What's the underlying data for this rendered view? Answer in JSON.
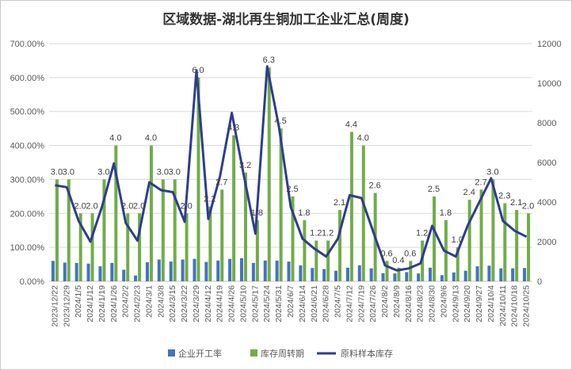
{
  "chart_data": {
    "type": "bar",
    "title": "区域数据-湖北再生铜加工企业汇总(周度)",
    "xlabel": "",
    "ylabel": "",
    "ylim": [
      0,
      7
    ],
    "y2lim": [
      0,
      12000
    ],
    "yticks": [
      "0.00%",
      "100.00%",
      "200.00%",
      "300.00%",
      "400.00%",
      "500.00%",
      "600.00%",
      "700.00%"
    ],
    "y2ticks": [
      "0",
      "2000",
      "4000",
      "6000",
      "8000",
      "10000",
      "12000"
    ],
    "legend_position": "bottom",
    "grid": true,
    "categories": [
      "2023/12/22",
      "2023/12/29",
      "2024/1/5",
      "2024/1/12",
      "2024/1/19",
      "2024/1/26",
      "2024/2/2",
      "2024/2/23",
      "2024/3/1",
      "2024/3/8",
      "2024/3/15",
      "2024/3/22",
      "2024/3/29",
      "2024/4/12",
      "2024/4/19",
      "2024/4/26",
      "2024/5/10",
      "2024/5/17",
      "2024/5/24",
      "2024/5/31",
      "2024/6/7",
      "2024/6/14",
      "2024/6/21",
      "2024/6/28",
      "2024/7/5",
      "2024/7/12",
      "2024/7/19",
      "2024/7/26",
      "2024/8/2",
      "2024/8/9",
      "2024/8/16",
      "2024/8/23",
      "2024/8/30",
      "2024/9/6",
      "2024/9/13",
      "2024/9/20",
      "2024/9/27",
      "2024/10/4",
      "2024/10/11",
      "2024/10/18",
      "2024/10/25"
    ],
    "series": [
      {
        "name": "企业开工率",
        "type": "bar",
        "axis": "left",
        "color": "#4472C4",
        "values": [
          0.6,
          0.55,
          0.54,
          0.52,
          0.44,
          0.54,
          0.34,
          0.17,
          0.56,
          0.64,
          0.58,
          0.64,
          0.66,
          0.57,
          0.61,
          0.66,
          0.68,
          0.54,
          0.61,
          0.61,
          0.58,
          0.47,
          0.39,
          0.36,
          0.31,
          0.4,
          0.47,
          0.38,
          0.24,
          0.23,
          0.27,
          0.23,
          0.4,
          0.18,
          0.26,
          0.31,
          0.44,
          0.46,
          0.38,
          0.38,
          0.39
        ]
      },
      {
        "name": "库存周转期",
        "type": "bar",
        "axis": "left",
        "color": "#70AD47",
        "values": [
          3.0,
          3.0,
          2.0,
          2.0,
          3.0,
          4.0,
          2.0,
          2.0,
          4.0,
          3.0,
          3.0,
          2.0,
          6.0,
          2.2,
          2.7,
          4.3,
          3.2,
          1.8,
          6.3,
          4.5,
          2.5,
          1.8,
          1.2,
          1.2,
          2.1,
          4.4,
          4.0,
          2.6,
          0.6,
          0.4,
          0.6,
          1.2,
          2.5,
          1.8,
          1.0,
          2.4,
          2.7,
          3.0,
          2.3,
          2.1,
          2.0
        ],
        "labels": [
          "3.0",
          "3.0",
          "2.0",
          "2.0",
          "3.0",
          "4.0",
          "2.0",
          "2.0",
          "4.0",
          "3.0",
          "3.0",
          "2.0",
          "6.0",
          "2.2",
          "2.7",
          "4.3",
          "3.2",
          "1.8",
          "6.3",
          "4.5",
          "2.5",
          "1.8",
          "1.2",
          "1.2",
          "2.1",
          "4.4",
          "4.0",
          "2.6",
          "0.6",
          "0.4",
          "0.6",
          "1.2",
          "2.5",
          "1.8",
          "1.0",
          "2.4",
          "2.7",
          "3.0",
          "2.3",
          "2.1",
          "2.0"
        ]
      },
      {
        "name": "原料样本库存",
        "type": "line",
        "axis": "right",
        "color": "#2E3D8F",
        "values": [
          4850,
          4750,
          3050,
          2000,
          3800,
          5950,
          2950,
          2050,
          5000,
          4600,
          4500,
          3000,
          10650,
          3150,
          5300,
          8500,
          5400,
          2400,
          10850,
          7800,
          3750,
          2150,
          1650,
          1250,
          2150,
          4350,
          4200,
          2500,
          800,
          550,
          650,
          900,
          2800,
          1550,
          1250,
          2800,
          4000,
          5200,
          3050,
          2550,
          2250
        ]
      }
    ]
  }
}
